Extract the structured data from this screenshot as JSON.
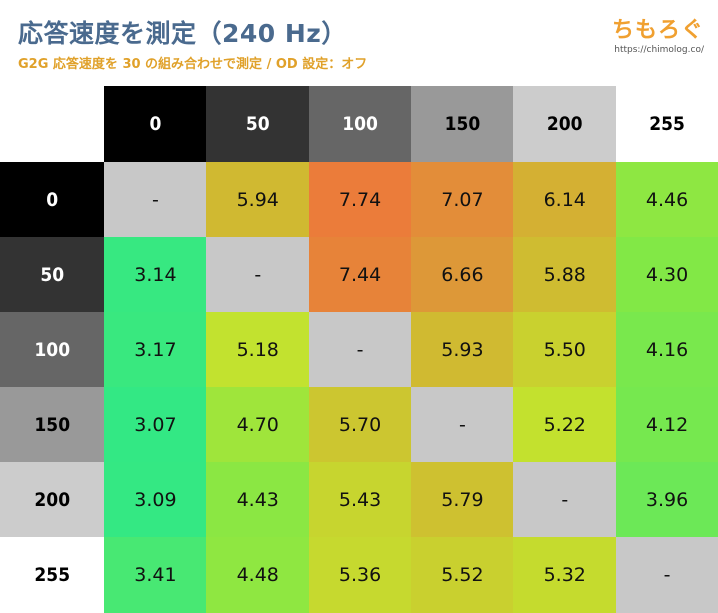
{
  "header": {
    "title": "応答速度を測定（240 Hz）",
    "subtitle": "G2G 応答速度を 30 の組み合わせで測定 / OD 設定：オフ",
    "brand": "ちもろぐ",
    "brand_url": "https://chimolog.co/"
  },
  "chart_data": {
    "type": "heatmap",
    "title": "応答速度を測定（240 Hz）",
    "subtitle": "G2G 応答速度を 30 の組み合わせで測定 / OD 設定：オフ",
    "col_labels": [
      "0",
      "50",
      "100",
      "150",
      "200",
      "255"
    ],
    "row_labels": [
      "0",
      "50",
      "100",
      "150",
      "200",
      "255"
    ],
    "values": [
      [
        "-",
        "5.94",
        "7.74",
        "7.07",
        "6.14",
        "4.46"
      ],
      [
        "3.14",
        "-",
        "7.44",
        "6.66",
        "5.88",
        "4.30"
      ],
      [
        "3.17",
        "5.18",
        "-",
        "5.93",
        "5.50",
        "4.16"
      ],
      [
        "3.07",
        "4.70",
        "5.70",
        "-",
        "5.22",
        "4.12"
      ],
      [
        "3.09",
        "4.43",
        "5.43",
        "5.79",
        "-",
        "3.96"
      ],
      [
        "3.41",
        "4.48",
        "5.36",
        "5.52",
        "5.32",
        "-"
      ]
    ],
    "colors": {
      "diagonal": "#c8c8c8",
      "header_shades": [
        "#000000",
        "#333333",
        "#666666",
        "#999999",
        "#cccccc",
        "#ffffff"
      ]
    }
  }
}
